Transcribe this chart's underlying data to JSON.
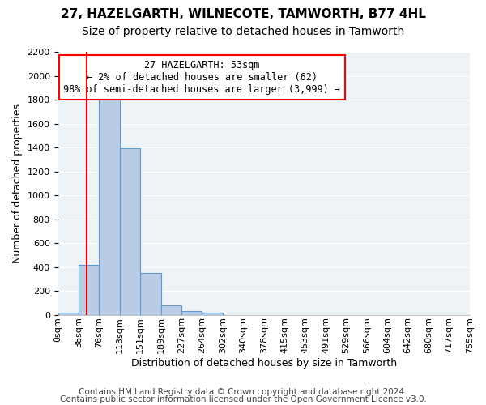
{
  "title": "27, HAZELGARTH, WILNECOTE, TAMWORTH, B77 4HL",
  "subtitle": "Size of property relative to detached houses in Tamworth",
  "xlabel": "Distribution of detached houses by size in Tamworth",
  "ylabel": "Number of detached properties",
  "bin_labels": [
    "0sqm",
    "38sqm",
    "76sqm",
    "113sqm",
    "151sqm",
    "189sqm",
    "227sqm",
    "264sqm",
    "302sqm",
    "340sqm",
    "378sqm",
    "415sqm",
    "453sqm",
    "491sqm",
    "529sqm",
    "566sqm",
    "604sqm",
    "642sqm",
    "680sqm",
    "717sqm",
    "755sqm"
  ],
  "bar_heights": [
    15,
    420,
    1810,
    1395,
    350,
    80,
    32,
    20,
    0,
    0,
    0,
    0,
    0,
    0,
    0,
    0,
    0,
    0,
    0,
    0
  ],
  "bar_color": "#b8cce4",
  "bar_edge_color": "#5b9bd5",
  "ylim": [
    0,
    2200
  ],
  "yticks": [
    0,
    200,
    400,
    600,
    800,
    1000,
    1200,
    1400,
    1600,
    1800,
    2000,
    2200
  ],
  "annotation_text": "27 HAZELGARTH: 53sqm\n← 2% of detached houses are smaller (62)\n98% of semi-detached houses are larger (3,999) →",
  "annotation_box_color": "#ffffff",
  "annotation_box_edge_color": "#ff0000",
  "footer1": "Contains HM Land Registry data © Crown copyright and database right 2024.",
  "footer2": "Contains public sector information licensed under the Open Government Licence v3.0.",
  "bg_color": "#eef3f8",
  "grid_color": "#ffffff",
  "title_fontsize": 11,
  "subtitle_fontsize": 10,
  "axis_label_fontsize": 9,
  "tick_fontsize": 8,
  "annotation_fontsize": 8.5,
  "footer_fontsize": 7.5
}
